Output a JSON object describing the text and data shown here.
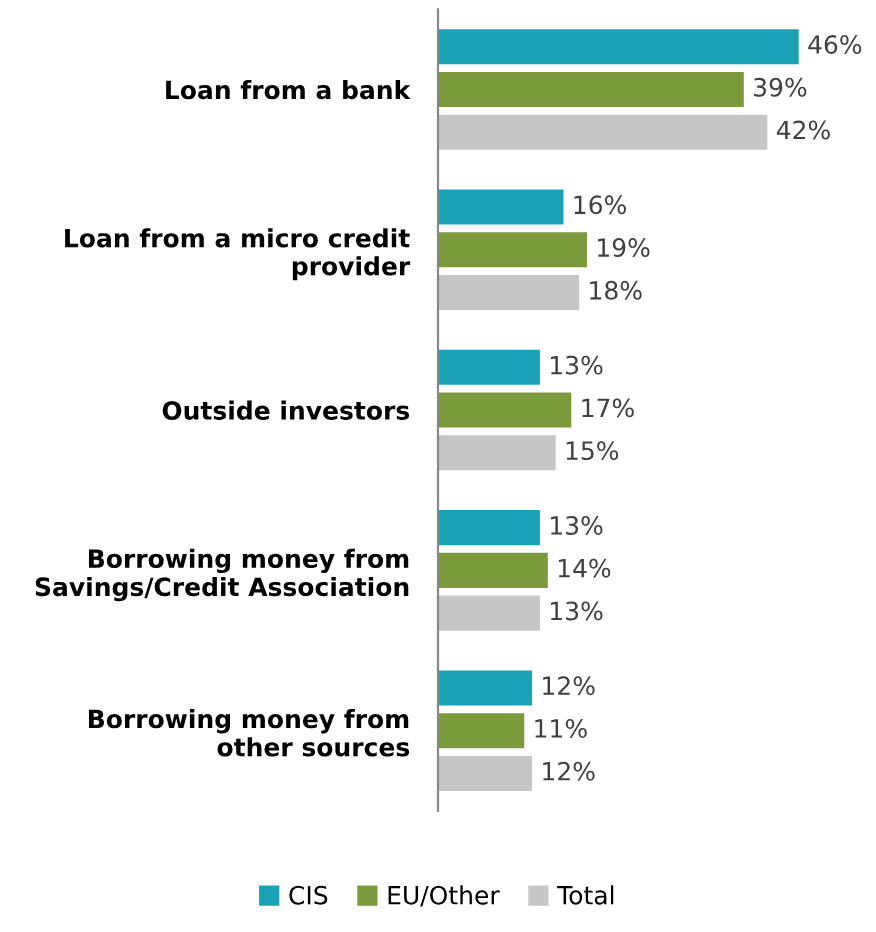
{
  "chart_data": {
    "type": "bar",
    "orientation": "horizontal",
    "categories": [
      "Loan from a bank",
      "Loan from a micro credit\nprovider",
      "Outside investors",
      "Borrowing money from\nSavings/Credit Association",
      "Borrowing money from\nother sources"
    ],
    "series": [
      {
        "name": "CIS",
        "color": "#1ba1b5",
        "values": [
          46,
          16,
          13,
          13,
          12
        ],
        "value_labels": [
          "46%",
          "16%",
          "13%",
          "13%",
          "12%"
        ]
      },
      {
        "name": "EU/Other",
        "color": "#7a9a3c",
        "values": [
          39,
          19,
          17,
          14,
          11
        ],
        "value_labels": [
          "39%",
          "19%",
          "17%",
          "14%",
          "11%"
        ]
      },
      {
        "name": "Total",
        "color": "#c6c6c6",
        "values": [
          42,
          18,
          15,
          13,
          12
        ],
        "value_labels": [
          "42%",
          "18%",
          "15%",
          "13%",
          "12%"
        ]
      }
    ],
    "legend": "bottom",
    "grid": false,
    "tick_labels": "y"
  }
}
